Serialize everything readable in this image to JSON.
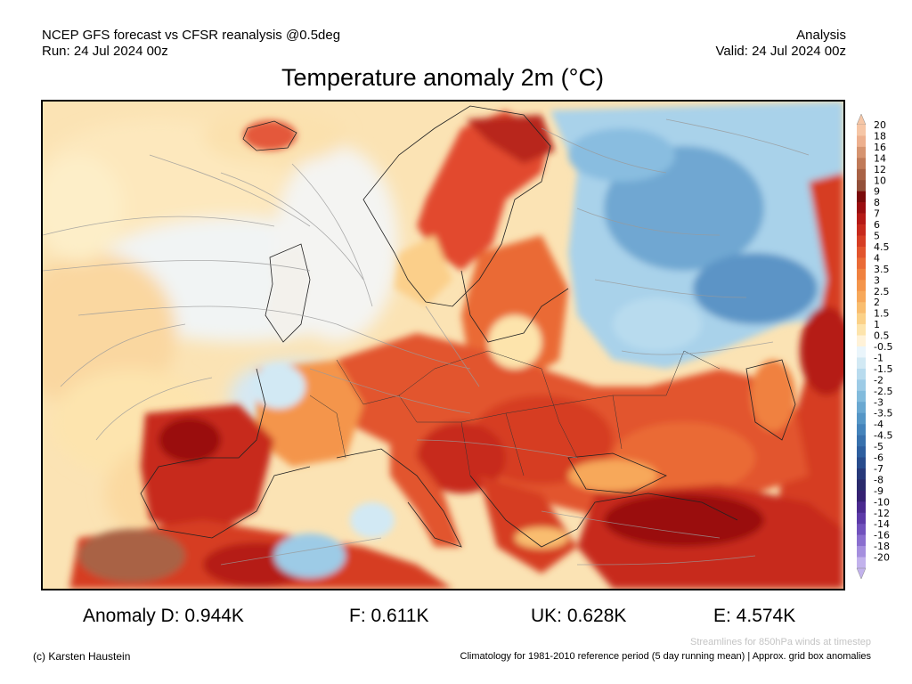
{
  "header": {
    "model_line": "NCEP GFS forecast vs CFSR reanalysis @0.5deg",
    "run_line": "Run: 24 Jul 2024 00z",
    "type_line": "Analysis",
    "valid_line": "Valid: 24 Jul 2024 00z"
  },
  "title": "Temperature anomaly 2m (°C)",
  "colorbar": {
    "levels": [
      "20",
      "18",
      "16",
      "14",
      "12",
      "10",
      "9",
      "8",
      "7",
      "6",
      "5",
      "4.5",
      "4",
      "3.5",
      "3",
      "2.5",
      "2",
      "1.5",
      "1",
      "0.5",
      "-0.5",
      "-1",
      "-1.5",
      "-2",
      "-2.5",
      "-3",
      "-3.5",
      "-4",
      "-4.5",
      "-5",
      "-6",
      "-7",
      "-8",
      "-9",
      "-10",
      "-12",
      "-14",
      "-16",
      "-18",
      "-20"
    ],
    "colors": [
      "#f6c6a6",
      "#edb08e",
      "#d69470",
      "#c07a58",
      "#a96245",
      "#93503a",
      "#7a0a0a",
      "#9a0e10",
      "#b51a16",
      "#c72a1c",
      "#d63e24",
      "#e2552d",
      "#ea6b36",
      "#f0813f",
      "#f4954b",
      "#f7a85a",
      "#f9bd6f",
      "#fbd188",
      "#fde4ac",
      "#fff2d8",
      "#eaf5fb",
      "#d2e9f4",
      "#b8dbee",
      "#9dcbe6",
      "#82bbdc",
      "#6aa8d1",
      "#5596c6",
      "#4483bb",
      "#3871ad",
      "#2e5f9f",
      "#284c8d",
      "#27397a",
      "#2a2a6c",
      "#352172",
      "#4a2a8f",
      "#5c3aa8",
      "#7152bd",
      "#8a6fcf",
      "#a58fde",
      "#c2b2ec"
    ]
  },
  "stats": {
    "anomaly_d": "Anomaly D: 0.944K",
    "f": "F: 0.611K",
    "uk": "UK: 0.628K",
    "e": "E: 4.574K"
  },
  "footer": {
    "streamlines_note": "Streamlines for 850hPa winds at timestep",
    "copyright": "(c) Karsten Haustein",
    "climatology_note": "Climatology for 1981-2010 reference period (5 day running mean) | Approx. grid box anomalies"
  }
}
